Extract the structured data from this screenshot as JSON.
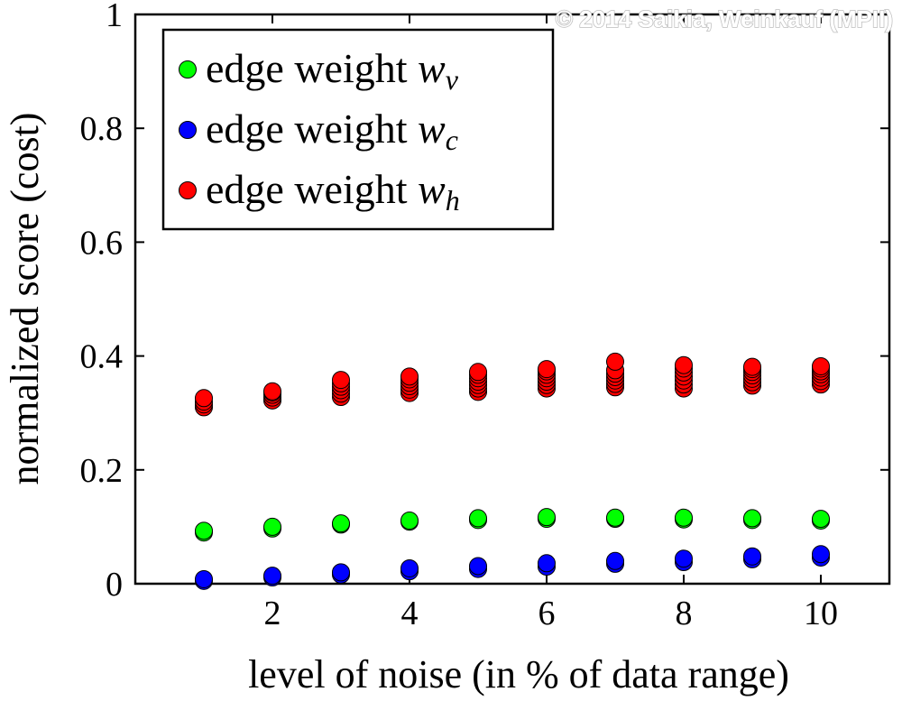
{
  "watermark": "© 2014 Saikia, Weinkauf (MPII)",
  "chart_data": {
    "type": "scatter",
    "title": "",
    "xlabel": "level of noise (in % of data range)",
    "ylabel": "normalized score (cost)",
    "xlim": [
      0,
      11
    ],
    "ylim": [
      0,
      1
    ],
    "xticks": [
      2,
      4,
      6,
      8,
      10
    ],
    "yticks": [
      0,
      0.2,
      0.4,
      0.6,
      0.8,
      1
    ],
    "ytick_labels": [
      "0",
      "0.2",
      "0.4",
      "0.6",
      "0.8",
      "1"
    ],
    "grid": false,
    "legend_position": "top-left",
    "series": [
      {
        "name": "edge weight w_v",
        "label_text": "edge weight ",
        "symbol": "w",
        "subscript": "v",
        "color": "#00ff00",
        "x": [
          1,
          1,
          2,
          2,
          3,
          3,
          4,
          4,
          5,
          5,
          6,
          6,
          7,
          7,
          8,
          8,
          9,
          9,
          10,
          10
        ],
        "y": [
          0.09,
          0.093,
          0.097,
          0.1,
          0.104,
          0.106,
          0.109,
          0.111,
          0.112,
          0.115,
          0.114,
          0.117,
          0.114,
          0.116,
          0.113,
          0.116,
          0.112,
          0.115,
          0.111,
          0.114
        ]
      },
      {
        "name": "edge weight w_c",
        "label_text": "edge weight ",
        "symbol": "w",
        "subscript": "c",
        "color": "#0000ff",
        "x": [
          1,
          1,
          2,
          2,
          3,
          3,
          4,
          4,
          5,
          5,
          6,
          6,
          7,
          7,
          8,
          8,
          9,
          9,
          10,
          10
        ],
        "y": [
          0.005,
          0.008,
          0.011,
          0.014,
          0.016,
          0.02,
          0.022,
          0.027,
          0.026,
          0.031,
          0.03,
          0.036,
          0.035,
          0.04,
          0.038,
          0.044,
          0.043,
          0.048,
          0.046,
          0.052
        ]
      },
      {
        "name": "edge weight w_h",
        "label_text": "edge weight ",
        "symbol": "w",
        "subscript": "h",
        "color": "#ff0000",
        "x": [
          1,
          1,
          1,
          1,
          2,
          2,
          2,
          2,
          2,
          3,
          3,
          3,
          3,
          3,
          3,
          4,
          4,
          4,
          4,
          4,
          4,
          5,
          5,
          5,
          5,
          5,
          5,
          5,
          6,
          6,
          6,
          6,
          6,
          6,
          6,
          7,
          7,
          7,
          7,
          7,
          7,
          7,
          8,
          8,
          8,
          8,
          8,
          8,
          8,
          9,
          9,
          9,
          9,
          9,
          9,
          9,
          10,
          10,
          10,
          10,
          10,
          10,
          10
        ],
        "y": [
          0.31,
          0.315,
          0.32,
          0.326,
          0.322,
          0.327,
          0.332,
          0.336,
          0.338,
          0.328,
          0.334,
          0.34,
          0.346,
          0.352,
          0.358,
          0.335,
          0.341,
          0.347,
          0.353,
          0.359,
          0.364,
          0.337,
          0.343,
          0.349,
          0.355,
          0.361,
          0.367,
          0.372,
          0.343,
          0.349,
          0.355,
          0.361,
          0.367,
          0.373,
          0.377,
          0.345,
          0.351,
          0.357,
          0.363,
          0.369,
          0.375,
          0.39,
          0.343,
          0.35,
          0.357,
          0.364,
          0.371,
          0.378,
          0.384,
          0.348,
          0.354,
          0.36,
          0.366,
          0.372,
          0.377,
          0.381,
          0.35,
          0.356,
          0.362,
          0.368,
          0.373,
          0.378,
          0.382
        ]
      }
    ]
  }
}
